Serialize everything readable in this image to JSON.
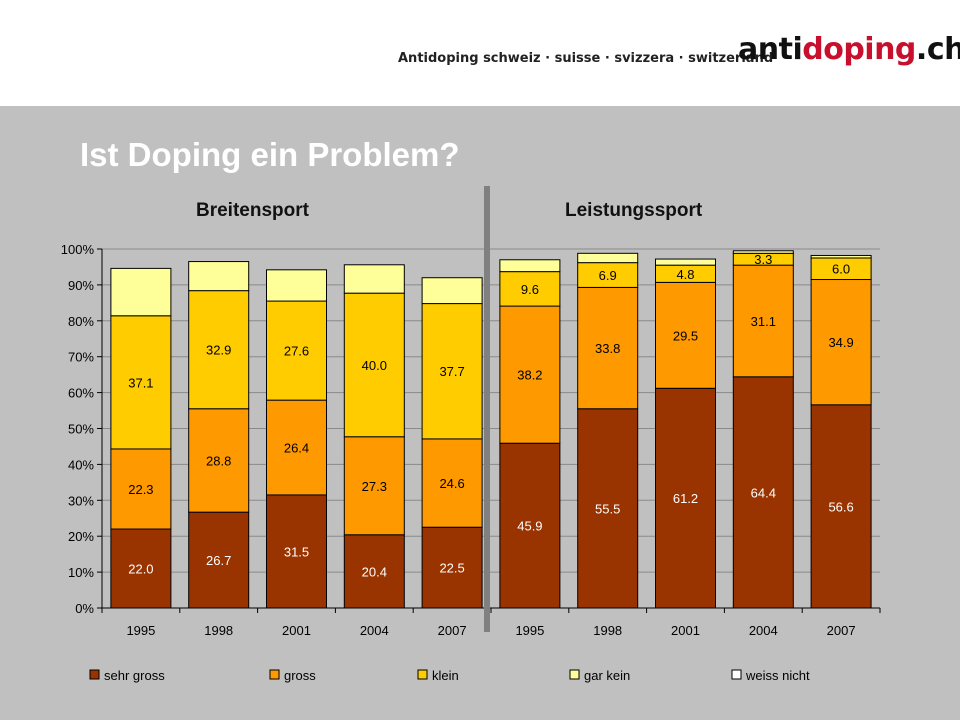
{
  "header": {
    "tagline": "Antidoping  schweiz · suisse · svizzera · switzerland",
    "logo_part1": "anti",
    "logo_part2": "doping",
    "logo_part3": ".ch"
  },
  "title": "Ist Doping ein Problem?",
  "groups": [
    "Breitensport",
    "Leistungssport"
  ],
  "colors": {
    "sehr_gross": "#993300",
    "gross": "#ff9900",
    "klein": "#ffcc00",
    "gar_kein": "#ffff99",
    "weiss_nicht": "#ffffff",
    "divider": "#808080"
  },
  "chart_data": {
    "type": "bar",
    "stacked": true,
    "normalized_percent": true,
    "categories": [
      "1995",
      "1998",
      "2001",
      "2004",
      "2007",
      "1995",
      "1998",
      "2001",
      "2004",
      "2007"
    ],
    "y_ticks": [
      "0%",
      "10%",
      "20%",
      "30%",
      "40%",
      "50%",
      "60%",
      "70%",
      "80%",
      "90%",
      "100%"
    ],
    "ylim": [
      0,
      100
    ],
    "legend_position": "bottom",
    "series": [
      {
        "name": "sehr gross",
        "values": [
          22.0,
          26.7,
          31.5,
          20.4,
          22.5,
          45.9,
          55.5,
          61.2,
          64.4,
          56.6
        ],
        "labels": [
          "22.0",
          "26.7",
          "31.5",
          "20.4",
          "22.5",
          "45.9",
          "55.5",
          "61.2",
          "64.4",
          "56.6"
        ]
      },
      {
        "name": "gross",
        "values": [
          22.3,
          28.8,
          26.4,
          27.3,
          24.6,
          38.2,
          33.8,
          29.5,
          31.1,
          34.9
        ],
        "labels": [
          "22.3",
          "28.8",
          "26.4",
          "27.3",
          "24.6",
          "38.2",
          "33.8",
          "29.5",
          "31.1",
          "34.9"
        ]
      },
      {
        "name": "klein",
        "values": [
          37.1,
          32.9,
          27.6,
          40.0,
          37.7,
          9.6,
          6.9,
          4.8,
          3.3,
          6.0
        ],
        "labels": [
          "37.1",
          "32.9",
          "27.6",
          "40.0",
          "37.7",
          "9.6",
          "6.9",
          "4.8",
          "3.3",
          "6.0"
        ]
      },
      {
        "name": "gar kein",
        "values": [
          13.2,
          8.1,
          8.7,
          7.9,
          7.2,
          3.3,
          2.6,
          1.7,
          0.7,
          0.7
        ],
        "labels": [
          "",
          "",
          "",
          "",
          "",
          "",
          "",
          "",
          "",
          ""
        ]
      },
      {
        "name": "weiss nicht",
        "values": [
          0,
          0,
          0,
          0,
          0,
          0,
          0,
          0,
          0,
          0
        ],
        "labels": [
          "",
          "",
          "",
          "",
          "",
          "",
          "",
          "",
          "",
          ""
        ]
      }
    ]
  }
}
